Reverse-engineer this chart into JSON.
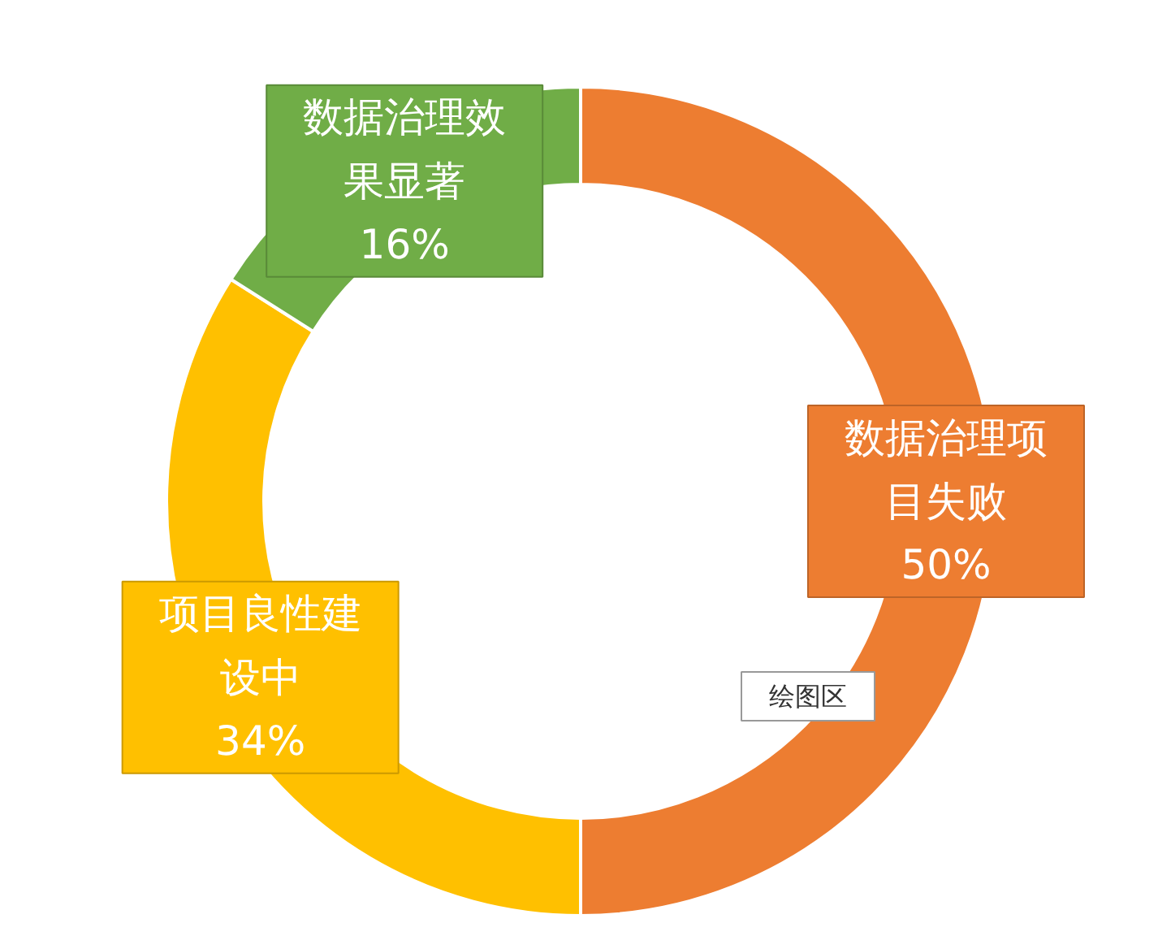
{
  "chart_data": {
    "type": "donut",
    "categories": [
      "数据治理项目失败",
      "项目良性建设中",
      "数据治理效果显著"
    ],
    "values": [
      50,
      34,
      16
    ],
    "value_labels": [
      "50%",
      "34%",
      "16%"
    ],
    "colors": [
      "#ed7d31",
      "#ffc000",
      "#70ad47"
    ],
    "annotations": [
      "绘图区"
    ]
  }
}
